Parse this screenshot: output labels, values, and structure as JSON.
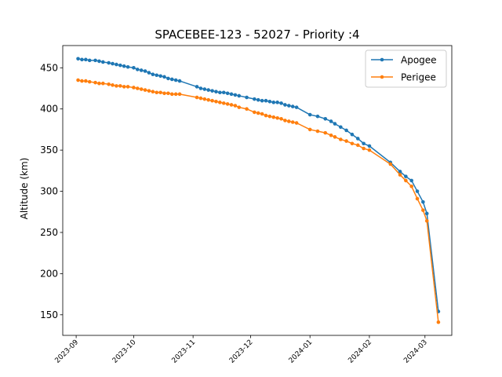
{
  "chart_data": {
    "type": "line",
    "title": "SPACEBEE-123 - 52027 - Priority :4",
    "xlabel": "",
    "ylabel": "Altitude (km)",
    "x_axis_type": "date",
    "xlim": [
      "2023-08-25",
      "2024-03-15"
    ],
    "ylim": [
      125,
      477
    ],
    "yticks": [
      150,
      200,
      250,
      300,
      350,
      400,
      450
    ],
    "xticks": [
      {
        "date": "2023-09-01",
        "label": "2023-09"
      },
      {
        "date": "2023-10-01",
        "label": "2023-10"
      },
      {
        "date": "2023-11-01",
        "label": "2023-11"
      },
      {
        "date": "2023-12-01",
        "label": "2023-12"
      },
      {
        "date": "2024-01-01",
        "label": "2024-01"
      },
      {
        "date": "2024-02-01",
        "label": "2024-02"
      },
      {
        "date": "2024-03-01",
        "label": "2024-03"
      }
    ],
    "grid": false,
    "legend_position": "top-right",
    "series": [
      {
        "name": "Apogee",
        "color": "#1f77b4",
        "points": [
          [
            "2023-09-02",
            461
          ],
          [
            "2023-09-04",
            460
          ],
          [
            "2023-09-06",
            460
          ],
          [
            "2023-09-08",
            459
          ],
          [
            "2023-09-11",
            459
          ],
          [
            "2023-09-13",
            458
          ],
          [
            "2023-09-15",
            457
          ],
          [
            "2023-09-18",
            456
          ],
          [
            "2023-09-20",
            455
          ],
          [
            "2023-09-22",
            454
          ],
          [
            "2023-09-24",
            453
          ],
          [
            "2023-09-26",
            452
          ],
          [
            "2023-09-28",
            451
          ],
          [
            "2023-10-01",
            450
          ],
          [
            "2023-10-03",
            448
          ],
          [
            "2023-10-05",
            447
          ],
          [
            "2023-10-07",
            446
          ],
          [
            "2023-10-09",
            444
          ],
          [
            "2023-10-11",
            442
          ],
          [
            "2023-10-13",
            441
          ],
          [
            "2023-10-15",
            440
          ],
          [
            "2023-10-17",
            439
          ],
          [
            "2023-10-19",
            437
          ],
          [
            "2023-10-21",
            436
          ],
          [
            "2023-10-23",
            435
          ],
          [
            "2023-10-25",
            434
          ],
          [
            "2023-11-03",
            427
          ],
          [
            "2023-11-05",
            425
          ],
          [
            "2023-11-07",
            424
          ],
          [
            "2023-11-09",
            423
          ],
          [
            "2023-11-11",
            422
          ],
          [
            "2023-11-13",
            421
          ],
          [
            "2023-11-15",
            420
          ],
          [
            "2023-11-17",
            420
          ],
          [
            "2023-11-19",
            419
          ],
          [
            "2023-11-21",
            418
          ],
          [
            "2023-11-23",
            417
          ],
          [
            "2023-11-25",
            416
          ],
          [
            "2023-11-29",
            414
          ],
          [
            "2023-12-03",
            412
          ],
          [
            "2023-12-05",
            411
          ],
          [
            "2023-12-07",
            410
          ],
          [
            "2023-12-09",
            410
          ],
          [
            "2023-12-11",
            409
          ],
          [
            "2023-12-13",
            408
          ],
          [
            "2023-12-15",
            408
          ],
          [
            "2023-12-17",
            407
          ],
          [
            "2023-12-19",
            405
          ],
          [
            "2023-12-21",
            404
          ],
          [
            "2023-12-23",
            403
          ],
          [
            "2023-12-25",
            402
          ],
          [
            "2024-01-01",
            393
          ],
          [
            "2024-01-05",
            391
          ],
          [
            "2024-01-09",
            388
          ],
          [
            "2024-01-12",
            385
          ],
          [
            "2024-01-14",
            382
          ],
          [
            "2024-01-17",
            378
          ],
          [
            "2024-01-20",
            374
          ],
          [
            "2024-01-23",
            369
          ],
          [
            "2024-01-26",
            364
          ],
          [
            "2024-01-29",
            358
          ],
          [
            "2024-02-01",
            355
          ],
          [
            "2024-02-12",
            335
          ],
          [
            "2024-02-17",
            324
          ],
          [
            "2024-02-20",
            318
          ],
          [
            "2024-02-23",
            313
          ],
          [
            "2024-02-26",
            300
          ],
          [
            "2024-02-29",
            287
          ],
          [
            "2024-03-02",
            273
          ],
          [
            "2024-03-08",
            154
          ]
        ]
      },
      {
        "name": "Perigee",
        "color": "#ff7f0e",
        "points": [
          [
            "2023-09-02",
            435
          ],
          [
            "2023-09-04",
            434
          ],
          [
            "2023-09-06",
            434
          ],
          [
            "2023-09-08",
            433
          ],
          [
            "2023-09-11",
            432
          ],
          [
            "2023-09-13",
            431
          ],
          [
            "2023-09-15",
            431
          ],
          [
            "2023-09-18",
            430
          ],
          [
            "2023-09-20",
            429
          ],
          [
            "2023-09-22",
            428
          ],
          [
            "2023-09-24",
            428
          ],
          [
            "2023-09-26",
            427
          ],
          [
            "2023-09-28",
            427
          ],
          [
            "2023-10-01",
            426
          ],
          [
            "2023-10-03",
            425
          ],
          [
            "2023-10-05",
            424
          ],
          [
            "2023-10-07",
            423
          ],
          [
            "2023-10-09",
            422
          ],
          [
            "2023-10-11",
            421
          ],
          [
            "2023-10-13",
            420
          ],
          [
            "2023-10-15",
            420
          ],
          [
            "2023-10-17",
            419
          ],
          [
            "2023-10-19",
            419
          ],
          [
            "2023-10-21",
            418
          ],
          [
            "2023-10-23",
            418
          ],
          [
            "2023-10-25",
            418
          ],
          [
            "2023-11-03",
            414
          ],
          [
            "2023-11-05",
            413
          ],
          [
            "2023-11-07",
            412
          ],
          [
            "2023-11-09",
            411
          ],
          [
            "2023-11-11",
            410
          ],
          [
            "2023-11-13",
            409
          ],
          [
            "2023-11-15",
            408
          ],
          [
            "2023-11-17",
            407
          ],
          [
            "2023-11-19",
            406
          ],
          [
            "2023-11-21",
            405
          ],
          [
            "2023-11-23",
            404
          ],
          [
            "2023-11-25",
            402
          ],
          [
            "2023-11-29",
            400
          ],
          [
            "2023-12-03",
            396
          ],
          [
            "2023-12-05",
            395
          ],
          [
            "2023-12-07",
            394
          ],
          [
            "2023-12-09",
            392
          ],
          [
            "2023-12-11",
            391
          ],
          [
            "2023-12-13",
            390
          ],
          [
            "2023-12-15",
            389
          ],
          [
            "2023-12-17",
            388
          ],
          [
            "2023-12-19",
            386
          ],
          [
            "2023-12-21",
            385
          ],
          [
            "2023-12-23",
            384
          ],
          [
            "2023-12-25",
            383
          ],
          [
            "2024-01-01",
            375
          ],
          [
            "2024-01-05",
            373
          ],
          [
            "2024-01-09",
            371
          ],
          [
            "2024-01-12",
            368
          ],
          [
            "2024-01-14",
            366
          ],
          [
            "2024-01-17",
            363
          ],
          [
            "2024-01-20",
            361
          ],
          [
            "2024-01-23",
            358
          ],
          [
            "2024-01-26",
            356
          ],
          [
            "2024-01-29",
            352
          ],
          [
            "2024-02-01",
            350
          ],
          [
            "2024-02-12",
            333
          ],
          [
            "2024-02-17",
            320
          ],
          [
            "2024-02-20",
            313
          ],
          [
            "2024-02-23",
            306
          ],
          [
            "2024-02-26",
            291
          ],
          [
            "2024-02-29",
            277
          ],
          [
            "2024-03-02",
            264
          ],
          [
            "2024-03-08",
            141
          ]
        ]
      }
    ]
  }
}
